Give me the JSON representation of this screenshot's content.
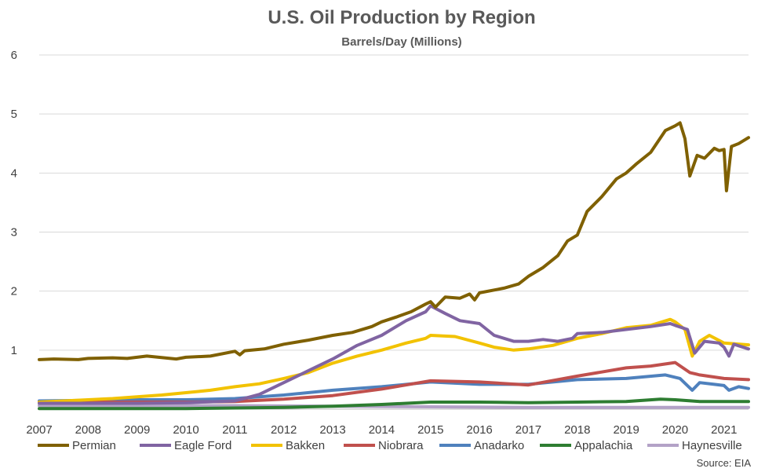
{
  "chart_data": {
    "type": "line",
    "title": "U.S. Oil Production by Region",
    "subtitle": "Barrels/Day (Millions)",
    "source": "Source: EIA",
    "xlim": [
      2007,
      2021.5
    ],
    "ylim": [
      0,
      6
    ],
    "x_ticks": [
      "2007",
      "2008",
      "2009",
      "2010",
      "2011",
      "2012",
      "2013",
      "2014",
      "2015",
      "2016",
      "2017",
      "2018",
      "2019",
      "2020",
      "2021"
    ],
    "y_ticks": [
      "",
      "1",
      "2",
      "3",
      "4",
      "5",
      "6"
    ],
    "grid": "horizontal",
    "legend_position": "bottom",
    "series": [
      {
        "name": "Permian",
        "color": "#7f6000",
        "x": [
          2007,
          2007.3,
          2007.8,
          2008,
          2008.5,
          2008.8,
          2009.2,
          2009.8,
          2010,
          2010.5,
          2011,
          2011.1,
          2011.2,
          2011.6,
          2012,
          2012.5,
          2013,
          2013.4,
          2013.8,
          2014,
          2014.3,
          2014.6,
          2014.9,
          2015,
          2015.1,
          2015.3,
          2015.6,
          2015.8,
          2015.9,
          2016,
          2016.5,
          2016.8,
          2017,
          2017.3,
          2017.6,
          2017.8,
          2018,
          2018.2,
          2018.5,
          2018.8,
          2019,
          2019.2,
          2019.5,
          2019.8,
          2020,
          2020.1,
          2020.2,
          2020.3,
          2020.45,
          2020.6,
          2020.8,
          2020.9,
          2021,
          2021.05,
          2021.15,
          2021.3,
          2021.5
        ],
        "y": [
          0.84,
          0.85,
          0.84,
          0.86,
          0.87,
          0.86,
          0.9,
          0.85,
          0.88,
          0.9,
          0.98,
          0.92,
          0.99,
          1.02,
          1.1,
          1.17,
          1.25,
          1.3,
          1.4,
          1.48,
          1.56,
          1.65,
          1.78,
          1.82,
          1.73,
          1.9,
          1.88,
          1.95,
          1.85,
          1.97,
          2.05,
          2.12,
          2.25,
          2.4,
          2.6,
          2.85,
          2.95,
          3.35,
          3.6,
          3.9,
          4.0,
          4.15,
          4.35,
          4.72,
          4.8,
          4.85,
          4.58,
          3.95,
          4.3,
          4.25,
          4.42,
          4.38,
          4.4,
          3.7,
          4.45,
          4.5,
          4.6
        ]
      },
      {
        "name": "Eagle Ford",
        "color": "#8064a2",
        "x": [
          2007,
          2008,
          2009,
          2010,
          2011,
          2011.5,
          2012,
          2012.5,
          2013,
          2013.5,
          2014,
          2014.5,
          2014.9,
          2015,
          2015.3,
          2015.6,
          2016,
          2016.3,
          2016.7,
          2017,
          2017.3,
          2017.6,
          2017.9,
          2018,
          2018.5,
          2019,
          2019.5,
          2019.9,
          2020,
          2020.25,
          2020.4,
          2020.6,
          2020.9,
          2021,
          2021.1,
          2021.2,
          2021.5
        ],
        "y": [
          0.1,
          0.1,
          0.1,
          0.11,
          0.14,
          0.25,
          0.45,
          0.65,
          0.85,
          1.08,
          1.25,
          1.5,
          1.65,
          1.75,
          1.62,
          1.5,
          1.45,
          1.25,
          1.15,
          1.15,
          1.18,
          1.15,
          1.2,
          1.28,
          1.3,
          1.35,
          1.4,
          1.45,
          1.42,
          1.35,
          0.95,
          1.15,
          1.12,
          1.05,
          0.9,
          1.1,
          1.02
        ]
      },
      {
        "name": "Bakken",
        "color": "#f2c200",
        "x": [
          2007,
          2007.5,
          2008,
          2008.5,
          2009,
          2009.5,
          2010,
          2010.5,
          2011,
          2011.5,
          2012,
          2012.5,
          2013,
          2013.5,
          2014,
          2014.5,
          2014.9,
          2015,
          2015.5,
          2016,
          2016.3,
          2016.7,
          2017,
          2017.5,
          2018,
          2018.5,
          2019,
          2019.5,
          2019.9,
          2020,
          2020.2,
          2020.35,
          2020.5,
          2020.7,
          2021,
          2021.5
        ],
        "y": [
          0.12,
          0.14,
          0.16,
          0.18,
          0.21,
          0.24,
          0.28,
          0.32,
          0.38,
          0.43,
          0.52,
          0.62,
          0.78,
          0.9,
          1.0,
          1.12,
          1.2,
          1.25,
          1.23,
          1.12,
          1.05,
          1.0,
          1.02,
          1.08,
          1.2,
          1.28,
          1.38,
          1.42,
          1.52,
          1.48,
          1.35,
          0.9,
          1.15,
          1.25,
          1.12,
          1.09
        ]
      },
      {
        "name": "Niobrara",
        "color": "#c0504d",
        "x": [
          2007,
          2008,
          2009,
          2010,
          2011,
          2012,
          2013,
          2014,
          2015,
          2016,
          2017,
          2018,
          2019,
          2019.5,
          2020,
          2020.3,
          2020.5,
          2021,
          2021.5
        ],
        "y": [
          0.12,
          0.12,
          0.12,
          0.12,
          0.13,
          0.17,
          0.23,
          0.34,
          0.48,
          0.46,
          0.41,
          0.56,
          0.7,
          0.73,
          0.79,
          0.62,
          0.58,
          0.52,
          0.5
        ]
      },
      {
        "name": "Anadarko",
        "color": "#4f81bd",
        "x": [
          2007,
          2008,
          2009,
          2010,
          2011,
          2012,
          2013,
          2014,
          2015,
          2016,
          2017,
          2018,
          2019,
          2019.8,
          2020.1,
          2020.35,
          2020.5,
          2020.8,
          2021,
          2021.1,
          2021.3,
          2021.5
        ],
        "y": [
          0.14,
          0.15,
          0.16,
          0.16,
          0.18,
          0.24,
          0.32,
          0.38,
          0.46,
          0.42,
          0.42,
          0.5,
          0.52,
          0.58,
          0.52,
          0.32,
          0.45,
          0.42,
          0.4,
          0.32,
          0.38,
          0.35
        ]
      },
      {
        "name": "Appalachia",
        "color": "#2e7d32",
        "x": [
          2007,
          2008,
          2009,
          2010,
          2011,
          2012,
          2013,
          2014,
          2015,
          2016,
          2017,
          2018,
          2019,
          2019.7,
          2020,
          2020.5,
          2021,
          2021.5
        ],
        "y": [
          0.01,
          0.01,
          0.01,
          0.01,
          0.02,
          0.03,
          0.05,
          0.08,
          0.12,
          0.12,
          0.11,
          0.12,
          0.13,
          0.17,
          0.16,
          0.13,
          0.13,
          0.13
        ]
      },
      {
        "name": "Haynesville",
        "color": "#b3a2c7",
        "x": [
          2007,
          2009,
          2011,
          2013,
          2015,
          2017,
          2019,
          2021,
          2021.5
        ],
        "y": [
          0.06,
          0.06,
          0.06,
          0.05,
          0.04,
          0.03,
          0.03,
          0.03,
          0.03
        ]
      }
    ]
  }
}
